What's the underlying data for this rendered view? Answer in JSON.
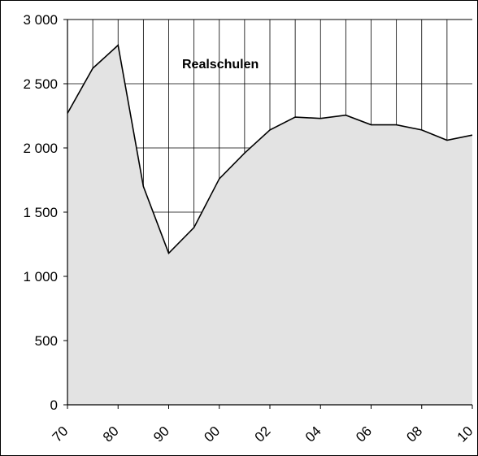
{
  "chart_data": {
    "type": "area",
    "title": "Realschulen",
    "xlabel": "",
    "ylabel": "",
    "ylim": [
      0,
      3000
    ],
    "yticks": [
      0,
      500,
      1000,
      1500,
      2000,
      2500,
      3000
    ],
    "ytick_labels": [
      "0",
      "500",
      "1 000",
      "1 500",
      "2 000",
      "2 500",
      "3 000"
    ],
    "xtick_labels": [
      "70",
      "80",
      "90",
      "00",
      "02",
      "04",
      "06",
      "08",
      "10"
    ],
    "grid": true,
    "legend": "none",
    "colors": {
      "fill": "#e3e3e3",
      "line": "#000000",
      "grid": "#000000"
    },
    "series": [
      {
        "values": [
          2270,
          2620,
          2800,
          1700,
          1180,
          1380,
          1760,
          1960,
          2140,
          2240,
          2230,
          2255,
          2180,
          2180,
          2140,
          2060,
          2100
        ]
      }
    ]
  }
}
